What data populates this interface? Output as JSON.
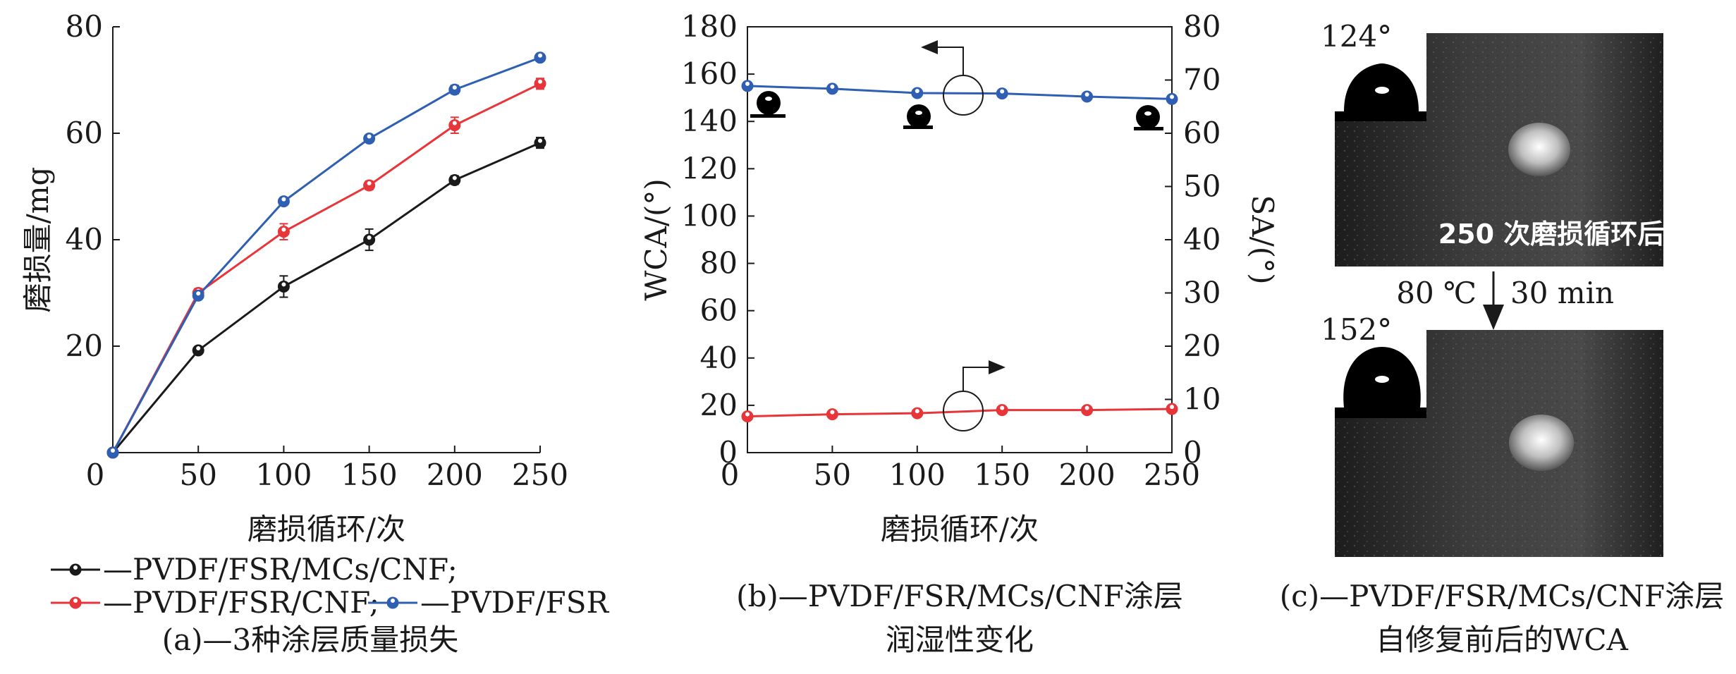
{
  "colors": {
    "black": "#1a1a1a",
    "red": "#e8353a",
    "blue": "#2f5fb3"
  },
  "chart_data": [
    {
      "type": "line",
      "panel": "a",
      "caption": "(a)—3种涂层质量损失",
      "xlabel": "磨损循环/次",
      "ylabel": "磨损量/mg",
      "xlim": [
        0,
        250
      ],
      "ylim": [
        0,
        80
      ],
      "xticks": [
        "0",
        "50",
        "100",
        "150",
        "200",
        "250"
      ],
      "yticks": [
        "20",
        "40",
        "60",
        "80"
      ],
      "x": [
        0,
        50,
        100,
        150,
        200,
        250
      ],
      "series": [
        {
          "name": "—PVDF/FSR/MCs/CNF;",
          "color": "#1a1a1a",
          "values": [
            0,
            19.2,
            31.2,
            40.0,
            51.2,
            58.2
          ],
          "err": [
            0,
            0.5,
            2.0,
            2.0,
            0.8,
            1.0
          ]
        },
        {
          "name": "—PVDF/FSR/CNF;",
          "color": "#e8353a",
          "values": [
            0,
            30.0,
            41.5,
            50.2,
            61.5,
            69.3
          ],
          "err": [
            0,
            0.8,
            1.5,
            0.8,
            1.5,
            1.0
          ]
        },
        {
          "name": "—PVDF/FSR",
          "color": "#2f5fb3",
          "values": [
            0,
            29.5,
            47.2,
            59.0,
            68.2,
            74.2
          ],
          "err": [
            0,
            0.6,
            0.6,
            0.6,
            0.8,
            0.6
          ]
        }
      ]
    },
    {
      "type": "line",
      "panel": "b",
      "caption_line1": "(b)—PVDF/FSR/MCs/CNF涂层",
      "caption_line2": "润湿性变化",
      "xlabel": "磨损循环/次",
      "ylabel_left": "WCA/(°)",
      "ylabel_right": "SA/(°)",
      "xlim": [
        0,
        250
      ],
      "ylim_left": [
        0,
        180
      ],
      "ylim_right": [
        0,
        80
      ],
      "xticks": [
        "0",
        "50",
        "100",
        "150",
        "200",
        "250"
      ],
      "yticks_left": [
        "0",
        "20",
        "40",
        "60",
        "80",
        "100",
        "120",
        "140",
        "160",
        "180"
      ],
      "yticks_right": [
        "0",
        "10",
        "20",
        "30",
        "40",
        "50",
        "60",
        "70",
        "80"
      ],
      "x": [
        0,
        50,
        100,
        150,
        200,
        250
      ],
      "series": [
        {
          "axis": "left",
          "color": "#2f5fb3",
          "values": [
            155,
            153.8,
            152,
            151.8,
            150.5,
            149.5
          ],
          "err": [
            0.6,
            0.6,
            0.8,
            0.8,
            1.5,
            0.8
          ]
        },
        {
          "axis": "right",
          "color": "#e8353a",
          "values": [
            6.8,
            7.2,
            7.4,
            8.0,
            8.0,
            8.2
          ],
          "err": [
            0.2,
            0.2,
            0.2,
            0.2,
            0.2,
            0.2
          ]
        }
      ]
    }
  ],
  "panel_c": {
    "caption_line1": "(c)—PVDF/FSR/MCs/CNF涂层",
    "caption_line2": "自修复前后的WCA",
    "top_angle": "124°",
    "bottom_angle": "152°",
    "photo_label": "250 次磨损循环后",
    "arrow_label_temp": "80 ℃",
    "arrow_label_time": "30 min"
  }
}
